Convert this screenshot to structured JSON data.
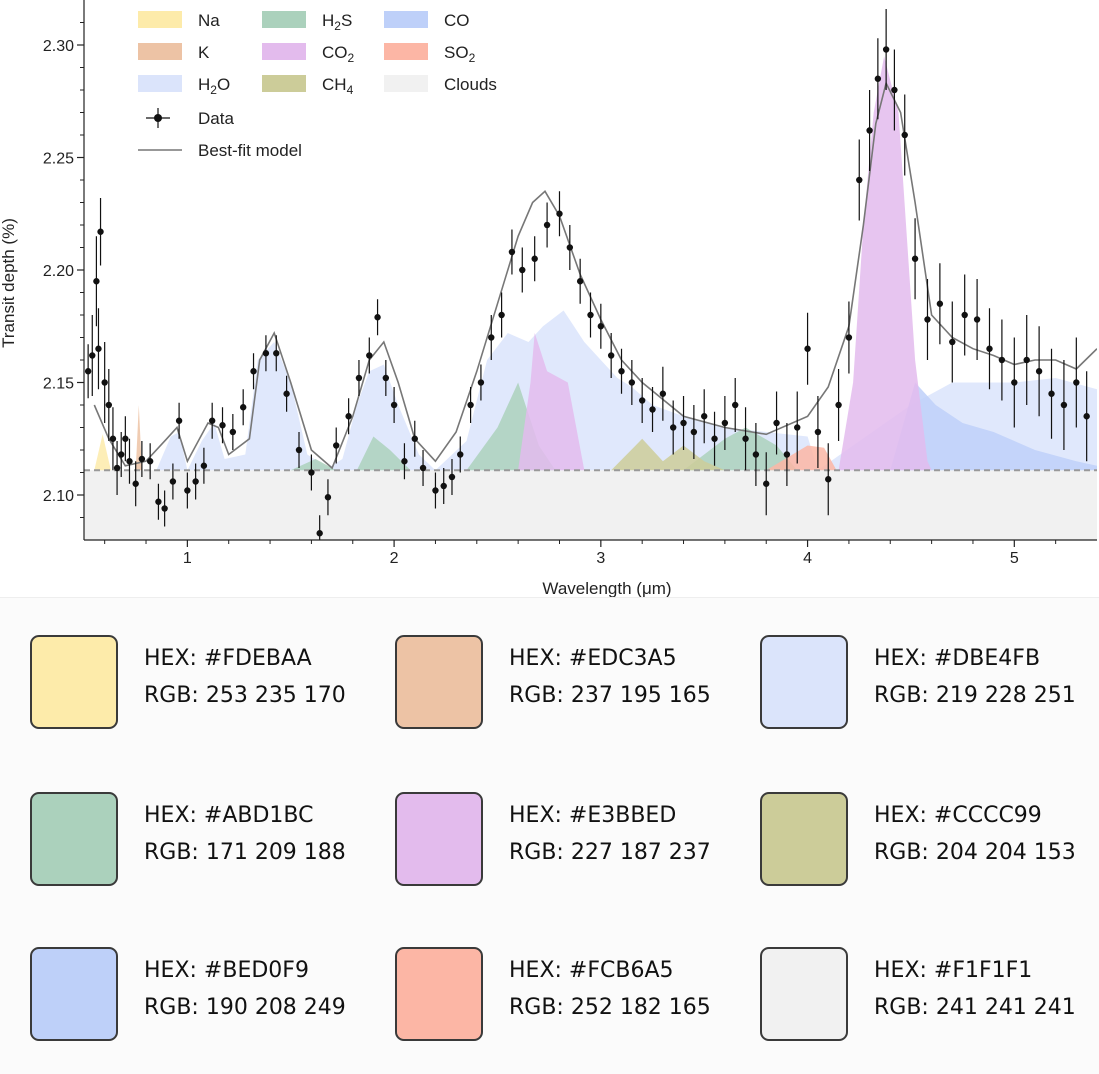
{
  "chart_data": {
    "type": "area",
    "xlabel": "Wavelength (μm)",
    "ylabel": "Transit depth (%)",
    "xlim": [
      0.5,
      5.4
    ],
    "ylim": [
      2.08,
      2.32
    ],
    "xticks": [
      1,
      2,
      3,
      4,
      5
    ],
    "yticks": [
      2.1,
      2.15,
      2.2,
      2.25,
      2.3
    ],
    "ytick_labels": [
      "2.10",
      "2.15",
      "2.20",
      "2.25",
      "2.30"
    ],
    "cloud_level": 2.111,
    "legend": [
      {
        "label": "Na",
        "sub": "",
        "color": "#FDEBAA"
      },
      {
        "label": "H",
        "sub": "2",
        "tail": "S",
        "color": "#ABD1BC"
      },
      {
        "label": "CO",
        "sub": "",
        "color": "#BED0F9"
      },
      {
        "label": "K",
        "sub": "",
        "color": "#EDC3A5"
      },
      {
        "label": "CO",
        "sub": "2",
        "color": "#E3BBED"
      },
      {
        "label": "SO",
        "sub": "2",
        "color": "#FCB6A5"
      },
      {
        "label": "H",
        "sub": "2",
        "tail": "O",
        "color": "#DBE4FB"
      },
      {
        "label": "CH",
        "sub": "4",
        "color": "#CCCC99"
      },
      {
        "label": "Clouds",
        "sub": "",
        "color": "#F1F1F1"
      }
    ],
    "legend_lines": [
      {
        "label": "Data",
        "kind": "errorbar"
      },
      {
        "label": "Best-fit model",
        "kind": "line"
      }
    ],
    "components": [
      {
        "name": "H2O",
        "color": "#DBE4FB",
        "points": [
          [
            0.85,
            2.111
          ],
          [
            0.92,
            2.126
          ],
          [
            0.96,
            2.128
          ],
          [
            1.0,
            2.111
          ],
          [
            1.07,
            2.124
          ],
          [
            1.13,
            2.132
          ],
          [
            1.18,
            2.116
          ],
          [
            1.28,
            2.118
          ],
          [
            1.34,
            2.16
          ],
          [
            1.42,
            2.168
          ],
          [
            1.5,
            2.15
          ],
          [
            1.58,
            2.118
          ],
          [
            1.68,
            2.112
          ],
          [
            1.75,
            2.116
          ],
          [
            1.82,
            2.14
          ],
          [
            1.88,
            2.155
          ],
          [
            1.95,
            2.158
          ],
          [
            2.02,
            2.14
          ],
          [
            2.12,
            2.118
          ],
          [
            2.2,
            2.111
          ],
          [
            2.35,
            2.124
          ],
          [
            2.45,
            2.16
          ],
          [
            2.55,
            2.172
          ],
          [
            2.65,
            2.168
          ],
          [
            2.72,
            2.175
          ],
          [
            2.82,
            2.182
          ],
          [
            2.92,
            2.168
          ],
          [
            3.0,
            2.16
          ],
          [
            3.08,
            2.152
          ],
          [
            3.15,
            2.148
          ],
          [
            3.25,
            2.14
          ],
          [
            3.4,
            2.135
          ],
          [
            3.6,
            2.13
          ],
          [
            3.8,
            2.128
          ],
          [
            4.0,
            2.126
          ],
          [
            4.05,
            2.111
          ],
          [
            4.5,
            2.14
          ],
          [
            4.7,
            2.15
          ],
          [
            5.0,
            2.15
          ],
          [
            5.2,
            2.152
          ],
          [
            5.4,
            2.147
          ]
        ]
      },
      {
        "name": "CO",
        "color": "#BED0F9",
        "points": [
          [
            4.4,
            2.111
          ],
          [
            4.52,
            2.15
          ],
          [
            4.62,
            2.14
          ],
          [
            4.75,
            2.132
          ],
          [
            4.9,
            2.128
          ],
          [
            5.1,
            2.12
          ],
          [
            5.3,
            2.115
          ],
          [
            5.4,
            2.113
          ]
        ]
      },
      {
        "name": "H2S",
        "color": "#ABD1BC",
        "points": [
          [
            1.5,
            2.111
          ],
          [
            1.62,
            2.116
          ],
          [
            1.72,
            2.111
          ],
          [
            1.82,
            2.111
          ],
          [
            1.9,
            2.126
          ],
          [
            1.98,
            2.12
          ],
          [
            2.08,
            2.111
          ],
          [
            2.35,
            2.111
          ],
          [
            2.5,
            2.13
          ],
          [
            2.6,
            2.15
          ],
          [
            2.7,
            2.122
          ],
          [
            2.78,
            2.111
          ],
          [
            3.4,
            2.111
          ],
          [
            3.6,
            2.125
          ],
          [
            3.7,
            2.13
          ],
          [
            3.85,
            2.122
          ],
          [
            3.95,
            2.111
          ]
        ]
      },
      {
        "name": "CH4",
        "color": "#CCCC99",
        "points": [
          [
            3.05,
            2.111
          ],
          [
            3.2,
            2.125
          ],
          [
            3.3,
            2.115
          ],
          [
            3.4,
            2.122
          ],
          [
            3.5,
            2.115
          ],
          [
            3.6,
            2.111
          ]
        ]
      },
      {
        "name": "CO2",
        "color": "#E3BBED",
        "points": [
          [
            2.6,
            2.111
          ],
          [
            2.66,
            2.15
          ],
          [
            2.68,
            2.172
          ],
          [
            2.74,
            2.155
          ],
          [
            2.84,
            2.15
          ],
          [
            2.92,
            2.111
          ],
          [
            4.15,
            2.111
          ],
          [
            4.22,
            2.15
          ],
          [
            4.27,
            2.22
          ],
          [
            4.32,
            2.27
          ],
          [
            4.37,
            2.295
          ],
          [
            4.44,
            2.27
          ],
          [
            4.52,
            2.16
          ],
          [
            4.58,
            2.115
          ],
          [
            4.6,
            2.111
          ]
        ]
      },
      {
        "name": "SO2",
        "color": "#FCB6A5",
        "points": [
          [
            3.8,
            2.111
          ],
          [
            4.0,
            2.122
          ],
          [
            4.08,
            2.121
          ],
          [
            4.14,
            2.111
          ]
        ]
      },
      {
        "name": "Na",
        "color": "#FDEBAA",
        "points": [
          [
            0.55,
            2.111
          ],
          [
            0.59,
            2.127
          ],
          [
            0.63,
            2.111
          ]
        ]
      },
      {
        "name": "K",
        "color": "#EDC3A5",
        "points": [
          [
            0.75,
            2.111
          ],
          [
            0.765,
            2.14
          ],
          [
            0.78,
            2.111
          ]
        ]
      }
    ],
    "model": [
      [
        0.55,
        2.14
      ],
      [
        0.62,
        2.125
      ],
      [
        0.7,
        2.113
      ],
      [
        0.8,
        2.115
      ],
      [
        0.9,
        2.125
      ],
      [
        0.95,
        2.13
      ],
      [
        1.0,
        2.115
      ],
      [
        1.1,
        2.132
      ],
      [
        1.15,
        2.13
      ],
      [
        1.2,
        2.118
      ],
      [
        1.3,
        2.125
      ],
      [
        1.35,
        2.16
      ],
      [
        1.42,
        2.172
      ],
      [
        1.5,
        2.15
      ],
      [
        1.6,
        2.12
      ],
      [
        1.7,
        2.112
      ],
      [
        1.8,
        2.135
      ],
      [
        1.88,
        2.16
      ],
      [
        1.95,
        2.168
      ],
      [
        2.02,
        2.15
      ],
      [
        2.1,
        2.125
      ],
      [
        2.2,
        2.115
      ],
      [
        2.3,
        2.128
      ],
      [
        2.4,
        2.155
      ],
      [
        2.5,
        2.185
      ],
      [
        2.6,
        2.215
      ],
      [
        2.67,
        2.23
      ],
      [
        2.73,
        2.235
      ],
      [
        2.8,
        2.224
      ],
      [
        2.9,
        2.198
      ],
      [
        3.0,
        2.178
      ],
      [
        3.1,
        2.16
      ],
      [
        3.2,
        2.15
      ],
      [
        3.4,
        2.135
      ],
      [
        3.6,
        2.13
      ],
      [
        3.8,
        2.127
      ],
      [
        4.0,
        2.135
      ],
      [
        4.1,
        2.148
      ],
      [
        4.2,
        2.175
      ],
      [
        4.27,
        2.22
      ],
      [
        4.33,
        2.265
      ],
      [
        4.38,
        2.283
      ],
      [
        4.45,
        2.27
      ],
      [
        4.52,
        2.23
      ],
      [
        4.6,
        2.18
      ],
      [
        4.7,
        2.17
      ],
      [
        4.8,
        2.165
      ],
      [
        4.9,
        2.162
      ],
      [
        5.0,
        2.158
      ],
      [
        5.1,
        2.16
      ],
      [
        5.2,
        2.16
      ],
      [
        5.3,
        2.156
      ],
      [
        5.4,
        2.165
      ]
    ],
    "data_points": [
      [
        0.52,
        2.155,
        0.012
      ],
      [
        0.54,
        2.162,
        0.018
      ],
      [
        0.56,
        2.195,
        0.02
      ],
      [
        0.57,
        2.165,
        0.018
      ],
      [
        0.58,
        2.217,
        0.015
      ],
      [
        0.6,
        2.15,
        0.018
      ],
      [
        0.62,
        2.14,
        0.016
      ],
      [
        0.64,
        2.125,
        0.014
      ],
      [
        0.66,
        2.112,
        0.012
      ],
      [
        0.68,
        2.118,
        0.01
      ],
      [
        0.7,
        2.125,
        0.01
      ],
      [
        0.72,
        2.115,
        0.01
      ],
      [
        0.75,
        2.105,
        0.01
      ],
      [
        0.78,
        2.116,
        0.008
      ],
      [
        0.82,
        2.115,
        0.008
      ],
      [
        0.86,
        2.097,
        0.008
      ],
      [
        0.89,
        2.094,
        0.008
      ],
      [
        0.93,
        2.106,
        0.008
      ],
      [
        0.96,
        2.133,
        0.008
      ],
      [
        1.0,
        2.102,
        0.008
      ],
      [
        1.04,
        2.106,
        0.008
      ],
      [
        1.08,
        2.113,
        0.008
      ],
      [
        1.12,
        2.133,
        0.008
      ],
      [
        1.17,
        2.131,
        0.008
      ],
      [
        1.22,
        2.128,
        0.008
      ],
      [
        1.27,
        2.139,
        0.008
      ],
      [
        1.32,
        2.155,
        0.008
      ],
      [
        1.38,
        2.163,
        0.008
      ],
      [
        1.43,
        2.163,
        0.008
      ],
      [
        1.48,
        2.145,
        0.008
      ],
      [
        1.54,
        2.12,
        0.008
      ],
      [
        1.6,
        2.11,
        0.008
      ],
      [
        1.64,
        2.083,
        0.008
      ],
      [
        1.68,
        2.099,
        0.008
      ],
      [
        1.72,
        2.122,
        0.008
      ],
      [
        1.78,
        2.135,
        0.008
      ],
      [
        1.83,
        2.152,
        0.008
      ],
      [
        1.88,
        2.162,
        0.008
      ],
      [
        1.92,
        2.179,
        0.008
      ],
      [
        1.96,
        2.152,
        0.008
      ],
      [
        2.0,
        2.14,
        0.008
      ],
      [
        2.05,
        2.115,
        0.008
      ],
      [
        2.1,
        2.125,
        0.008
      ],
      [
        2.14,
        2.112,
        0.008
      ],
      [
        2.2,
        2.102,
        0.008
      ],
      [
        2.24,
        2.104,
        0.008
      ],
      [
        2.28,
        2.108,
        0.008
      ],
      [
        2.32,
        2.118,
        0.008
      ],
      [
        2.37,
        2.14,
        0.008
      ],
      [
        2.42,
        2.15,
        0.008
      ],
      [
        2.47,
        2.17,
        0.01
      ],
      [
        2.52,
        2.18,
        0.01
      ],
      [
        2.57,
        2.208,
        0.01
      ],
      [
        2.62,
        2.2,
        0.01
      ],
      [
        2.68,
        2.205,
        0.01
      ],
      [
        2.74,
        2.22,
        0.01
      ],
      [
        2.8,
        2.225,
        0.01
      ],
      [
        2.85,
        2.21,
        0.01
      ],
      [
        2.9,
        2.195,
        0.01
      ],
      [
        2.95,
        2.18,
        0.01
      ],
      [
        3.0,
        2.175,
        0.01
      ],
      [
        3.05,
        2.162,
        0.01
      ],
      [
        3.1,
        2.155,
        0.01
      ],
      [
        3.15,
        2.15,
        0.01
      ],
      [
        3.2,
        2.142,
        0.01
      ],
      [
        3.25,
        2.138,
        0.01
      ],
      [
        3.3,
        2.145,
        0.012
      ],
      [
        3.35,
        2.13,
        0.012
      ],
      [
        3.4,
        2.132,
        0.012
      ],
      [
        3.45,
        2.128,
        0.012
      ],
      [
        3.5,
        2.135,
        0.012
      ],
      [
        3.55,
        2.125,
        0.012
      ],
      [
        3.6,
        2.132,
        0.012
      ],
      [
        3.65,
        2.14,
        0.012
      ],
      [
        3.7,
        2.125,
        0.014
      ],
      [
        3.75,
        2.118,
        0.014
      ],
      [
        3.8,
        2.105,
        0.014
      ],
      [
        3.85,
        2.132,
        0.014
      ],
      [
        3.9,
        2.118,
        0.014
      ],
      [
        3.95,
        2.13,
        0.016
      ],
      [
        4.0,
        2.165,
        0.016
      ],
      [
        4.05,
        2.128,
        0.016
      ],
      [
        4.1,
        2.107,
        0.016
      ],
      [
        4.15,
        2.14,
        0.016
      ],
      [
        4.2,
        2.17,
        0.016
      ],
      [
        4.25,
        2.24,
        0.018
      ],
      [
        4.3,
        2.262,
        0.018
      ],
      [
        4.34,
        2.285,
        0.018
      ],
      [
        4.38,
        2.298,
        0.018
      ],
      [
        4.42,
        2.28,
        0.018
      ],
      [
        4.47,
        2.26,
        0.018
      ],
      [
        4.52,
        2.205,
        0.018
      ],
      [
        4.58,
        2.178,
        0.018
      ],
      [
        4.64,
        2.185,
        0.018
      ],
      [
        4.7,
        2.168,
        0.018
      ],
      [
        4.76,
        2.18,
        0.018
      ],
      [
        4.82,
        2.178,
        0.018
      ],
      [
        4.88,
        2.165,
        0.018
      ],
      [
        4.94,
        2.16,
        0.018
      ],
      [
        5.0,
        2.15,
        0.02
      ],
      [
        5.06,
        2.16,
        0.02
      ],
      [
        5.12,
        2.155,
        0.02
      ],
      [
        5.18,
        2.145,
        0.02
      ],
      [
        5.24,
        2.14,
        0.02
      ],
      [
        5.3,
        2.15,
        0.02
      ],
      [
        5.35,
        2.135,
        0.02
      ]
    ]
  },
  "palette": [
    {
      "hex": "HEX: #FDEBAA",
      "rgb": "RGB: 253 235 170",
      "color": "#FDEBAA"
    },
    {
      "hex": "HEX: #EDC3A5",
      "rgb": "RGB: 237 195 165",
      "color": "#EDC3A5"
    },
    {
      "hex": "HEX: #DBE4FB",
      "rgb": "RGB: 219 228 251",
      "color": "#DBE4FB"
    },
    {
      "hex": "HEX: #ABD1BC",
      "rgb": "RGB: 171 209 188",
      "color": "#ABD1BC"
    },
    {
      "hex": "HEX: #E3BBED",
      "rgb": "RGB: 227 187 237",
      "color": "#E3BBED"
    },
    {
      "hex": "HEX: #CCCC99",
      "rgb": "RGB: 204 204 153",
      "color": "#CCCC99"
    },
    {
      "hex": "HEX: #BED0F9",
      "rgb": "RGB: 190 208 249",
      "color": "#BED0F9"
    },
    {
      "hex": "HEX: #FCB6A5",
      "rgb": "RGB: 252 182 165",
      "color": "#FCB6A5"
    },
    {
      "hex": "HEX: #F1F1F1",
      "rgb": "RGB: 241 241 241",
      "color": "#F1F1F1"
    }
  ]
}
